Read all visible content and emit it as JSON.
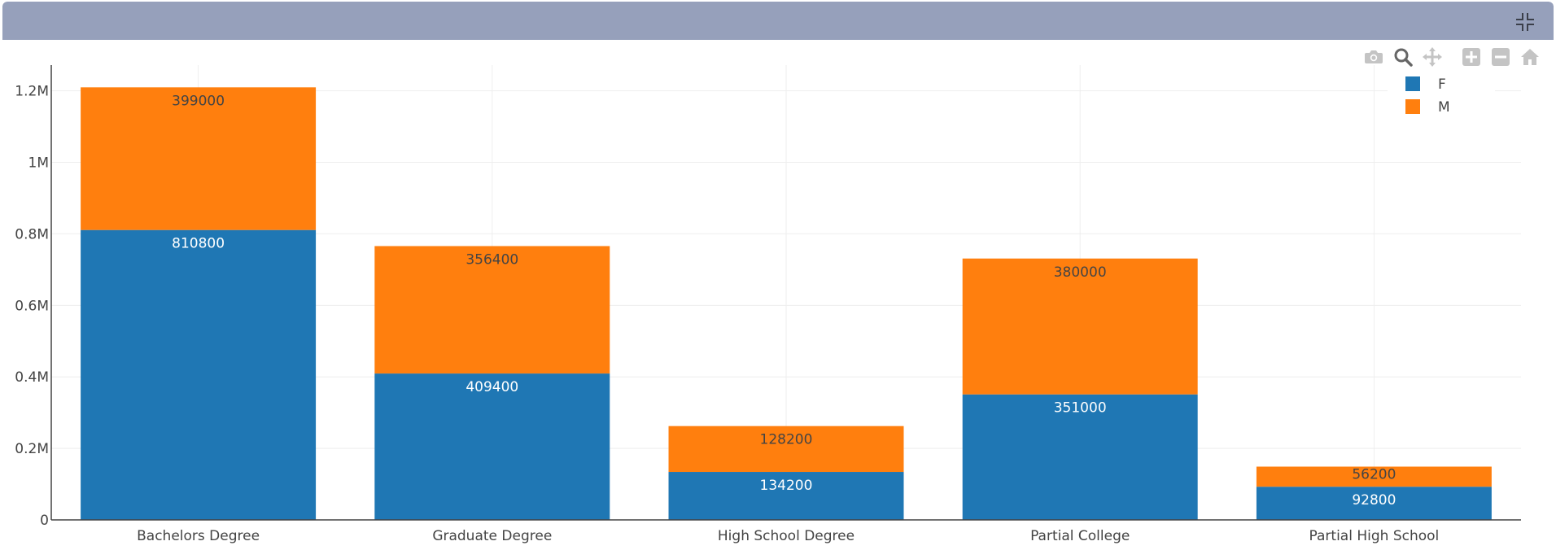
{
  "toolbar": {
    "icons": [
      "camera-icon",
      "zoom-icon",
      "pan-icon",
      "zoom-in-icon",
      "zoom-out-icon",
      "home-icon"
    ]
  },
  "header": {
    "collapse_icon": "collapse-icon",
    "color": "#96a0bb"
  },
  "chart_data": {
    "type": "bar",
    "barmode": "stack",
    "categories": [
      "Bachelors Degree",
      "Graduate Degree",
      "High School Degree",
      "Partial College",
      "Partial High School"
    ],
    "series": [
      {
        "name": "F",
        "color": "#1f77b4",
        "values": [
          810800,
          409400,
          134200,
          351000,
          92800
        ]
      },
      {
        "name": "M",
        "color": "#ff7f0e",
        "values": [
          399000,
          356400,
          128200,
          380000,
          56200
        ]
      }
    ],
    "yticks": [
      {
        "value": 0,
        "label": "0"
      },
      {
        "value": 200000,
        "label": "0.2M"
      },
      {
        "value": 400000,
        "label": "0.4M"
      },
      {
        "value": 600000,
        "label": "0.6M"
      },
      {
        "value": 800000,
        "label": "0.8M"
      },
      {
        "value": 1000000,
        "label": "1M"
      },
      {
        "value": 1200000,
        "label": "1.2M"
      }
    ],
    "ylim": [
      0,
      1272000
    ],
    "grid": true,
    "legend_position": "top-right",
    "title": "",
    "xlabel": "",
    "ylabel": ""
  }
}
